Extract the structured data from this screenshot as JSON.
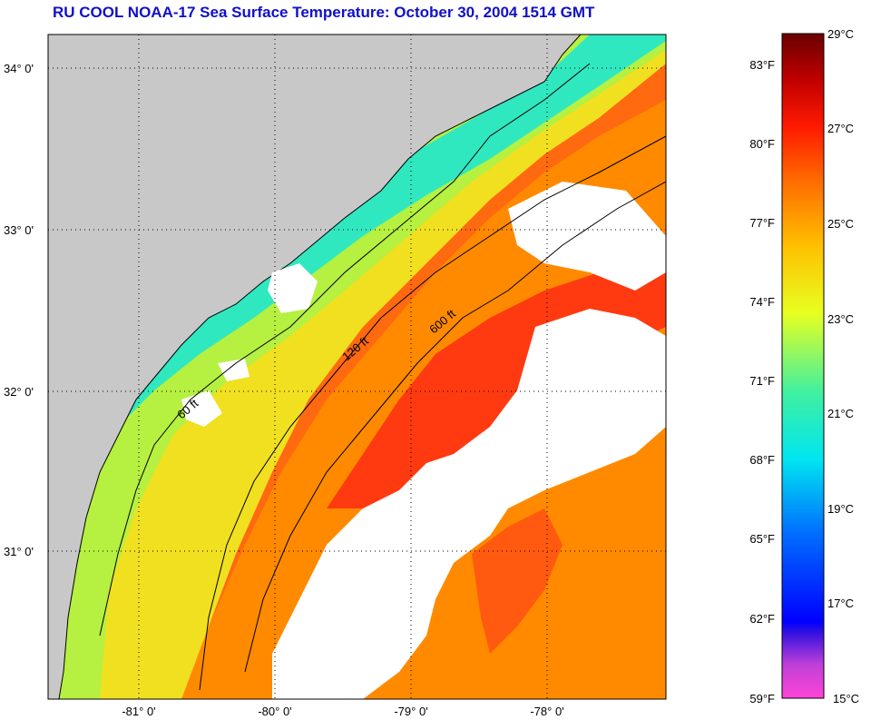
{
  "title": "RU COOL  NOAA-17  Sea Surface Temperature:  October 30, 2004 1514 GMT",
  "map": {
    "lat_labels": [
      "34° 0'",
      "33° 0'",
      "32° 0'",
      "31° 0'"
    ],
    "lon_labels": [
      "-81° 0'",
      "-80° 0'",
      "-79° 0'",
      "-78° 0'"
    ],
    "isobath_labels": [
      "60 ft",
      "120 ft",
      "600 ft"
    ],
    "colors": {
      "land": "#c8c8c8",
      "cloud": "#ffffff",
      "coast": "#000000"
    }
  },
  "colorbar": {
    "fahrenheit_labels": [
      "83°F",
      "80°F",
      "77°F",
      "74°F",
      "71°F",
      "68°F",
      "65°F",
      "62°F",
      "59°F"
    ],
    "celsius_labels": [
      "29°C",
      "27°C",
      "25°C",
      "23°C",
      "21°C",
      "19°C",
      "17°C",
      "15°C"
    ],
    "range_c": [
      15,
      29
    ],
    "colors": [
      "#ff44d8",
      "#8a3cc8",
      "#0000ff",
      "#0088ff",
      "#00e6f0",
      "#2fe6b0",
      "#d8ff20",
      "#ffb000",
      "#ff4010",
      "#ff0000",
      "#7a0000"
    ]
  }
}
